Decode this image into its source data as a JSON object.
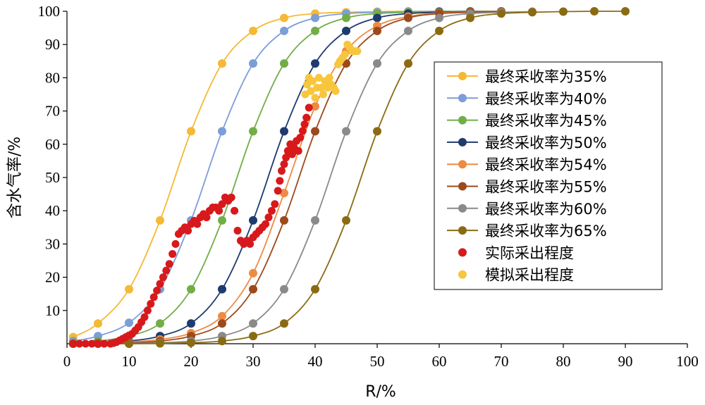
{
  "chart_data": {
    "type": "scatter",
    "xlabel": "R/%",
    "ylabel": "含水气率/%",
    "xlim": [
      0,
      100
    ],
    "ylim": [
      0,
      100
    ],
    "x_ticks": [
      0,
      10,
      20,
      30,
      40,
      50,
      60,
      70,
      80,
      90,
      100
    ],
    "y_ticks": [
      10,
      20,
      30,
      40,
      50,
      60,
      70,
      80,
      90,
      100
    ],
    "x_tick_labels": [
      "0",
      "10",
      "20",
      "30",
      "40",
      "50",
      "60",
      "70",
      "80",
      "90",
      "100"
    ],
    "y_tick_labels": [
      "10",
      "20",
      "30",
      "40",
      "50",
      "60",
      "70",
      "80",
      "90",
      "100"
    ],
    "grid": false,
    "legend_position": "right",
    "series": [
      {
        "name": "最终采收率为35%",
        "color": "#F5B935",
        "style": "line-marker",
        "x": [
          1,
          5,
          10,
          15,
          20,
          25,
          30,
          35,
          40,
          45,
          50,
          55,
          60,
          65,
          70
        ],
        "y": [
          2.0,
          6.1,
          16.4,
          37.1,
          63.9,
          84.3,
          94.1,
          98.0,
          99.3,
          99.7,
          99.9,
          100,
          100,
          100,
          100
        ]
      },
      {
        "name": "最终采收率为40%",
        "color": "#7C9ED8",
        "style": "line-marker",
        "x": [
          1,
          5,
          10,
          15,
          20,
          25,
          30,
          35,
          40,
          45,
          50,
          55,
          60,
          65,
          70
        ],
        "y": [
          0.8,
          2.3,
          6.3,
          16.4,
          37.1,
          63.9,
          84.3,
          94.1,
          98.0,
          99.3,
          99.7,
          99.9,
          100,
          100,
          100
        ]
      },
      {
        "name": "最终采收率为45%",
        "color": "#72AE48",
        "style": "line-marker",
        "x": [
          1,
          5,
          10,
          15,
          20,
          25,
          30,
          35,
          40,
          45,
          50,
          55,
          60,
          65,
          70
        ],
        "y": [
          0.3,
          0.8,
          2.3,
          6.1,
          16.4,
          37.1,
          63.9,
          84.3,
          94.1,
          98.0,
          99.3,
          99.7,
          99.9,
          100,
          100
        ]
      },
      {
        "name": "最终采收率为50%",
        "color": "#1F3A6E",
        "style": "line-marker",
        "x": [
          1,
          5,
          10,
          15,
          20,
          25,
          30,
          35,
          40,
          45,
          50,
          55,
          60,
          65,
          70
        ],
        "y": [
          0.1,
          0.3,
          0.8,
          2.3,
          6.1,
          16.4,
          37.1,
          63.9,
          84.3,
          94.1,
          98.0,
          99.3,
          99.7,
          99.9,
          100
        ]
      },
      {
        "name": "最终采收率为54%",
        "color": "#ED8B45",
        "style": "line-marker",
        "x": [
          1,
          5,
          10,
          15,
          20,
          25,
          30,
          35,
          40,
          45,
          50,
          55,
          60,
          65,
          70
        ],
        "y": [
          0.1,
          0.2,
          0.5,
          1.3,
          3.2,
          8.3,
          21.2,
          45.3,
          71.4,
          88.0,
          95.6,
          98.4,
          99.5,
          99.8,
          100
        ]
      },
      {
        "name": "最终采收率为55%",
        "color": "#9C4A1B",
        "style": "line-marker",
        "x": [
          1,
          5,
          10,
          15,
          20,
          25,
          30,
          35,
          40,
          45,
          50,
          55,
          60,
          65,
          70
        ],
        "y": [
          0.0,
          0.1,
          0.3,
          0.8,
          2.3,
          6.1,
          16.4,
          37.1,
          63.9,
          84.3,
          94.1,
          98.0,
          99.3,
          99.7,
          99.9
        ]
      },
      {
        "name": "最终采收率为60%",
        "color": "#8A8A8A",
        "style": "line-marker",
        "x": [
          1,
          5,
          10,
          15,
          20,
          25,
          30,
          35,
          40,
          45,
          50,
          55,
          60,
          65,
          70,
          75
        ],
        "y": [
          0.0,
          0.0,
          0.1,
          0.3,
          0.8,
          2.3,
          6.1,
          16.4,
          37.1,
          63.9,
          84.3,
          94.1,
          98.0,
          99.3,
          99.7,
          99.9
        ]
      },
      {
        "name": "最终采收率为65%",
        "color": "#8B6B12",
        "style": "line-marker",
        "x": [
          1,
          5,
          10,
          15,
          20,
          25,
          30,
          35,
          40,
          45,
          50,
          55,
          60,
          65,
          70,
          75,
          80,
          85,
          90
        ],
        "y": [
          0.0,
          0.0,
          0.0,
          0.1,
          0.3,
          0.8,
          2.3,
          6.1,
          16.4,
          37.1,
          63.9,
          84.3,
          94.1,
          98.0,
          99.3,
          99.7,
          99.9,
          100,
          100
        ]
      },
      {
        "name": "实际采出程度",
        "color": "#D7191C",
        "style": "marker",
        "x": [
          1,
          2,
          3,
          4,
          5,
          6,
          7,
          7.5,
          8,
          8.5,
          9,
          9.5,
          10,
          10.5,
          11,
          11.5,
          12,
          12.5,
          13,
          13.5,
          14,
          14.5,
          15,
          15.5,
          16,
          16.5,
          17,
          17.5,
          18,
          18.5,
          19,
          19.5,
          20,
          20.5,
          21,
          21.5,
          22,
          22.5,
          23,
          23.5,
          24,
          24.5,
          25,
          25.5,
          26,
          26.5,
          27,
          27.5,
          28,
          28.5,
          29,
          29.5,
          30,
          30.5,
          31,
          31.5,
          32,
          32.5,
          33,
          33.5,
          34,
          34.3,
          34.6,
          35,
          35.3,
          35.6,
          36,
          36.3,
          36.6,
          37,
          37.3,
          37.6,
          38,
          38.3,
          38.6,
          39
        ],
        "y": [
          0,
          0,
          0,
          0,
          0,
          0,
          0,
          0.2,
          0.5,
          1,
          1.5,
          2,
          2.5,
          3,
          4,
          5,
          6.5,
          8,
          10,
          12,
          14,
          16,
          18,
          20,
          22,
          24,
          27,
          30,
          33,
          34,
          35,
          34,
          36,
          37,
          36,
          38,
          39,
          38,
          40,
          41,
          41,
          40,
          42,
          44,
          43,
          44,
          40,
          34,
          31,
          30,
          31,
          30,
          32,
          33,
          34,
          35,
          36,
          38,
          40,
          42,
          46,
          49,
          52,
          54,
          56,
          58,
          60,
          57,
          59,
          61,
          58,
          62,
          64,
          66,
          68,
          71
        ]
      },
      {
        "name": "模拟采出程度",
        "color": "#F8C63C",
        "style": "marker",
        "x": [
          38.4,
          38.7,
          39.0,
          39.3,
          39.6,
          40.0,
          40.3,
          40.6,
          41.0,
          41.3,
          41.6,
          42.0,
          42.3,
          42.6,
          43.0,
          43.3,
          43.7,
          44.0,
          44.4,
          44.8,
          45.2,
          45.6,
          46.0,
          46.4,
          46.8
        ],
        "y": [
          75,
          78,
          80,
          76,
          79,
          74,
          77,
          80,
          77,
          75,
          79,
          77,
          80,
          78,
          77,
          76,
          84,
          85,
          86,
          87,
          90,
          89,
          88,
          88,
          88
        ]
      }
    ]
  }
}
